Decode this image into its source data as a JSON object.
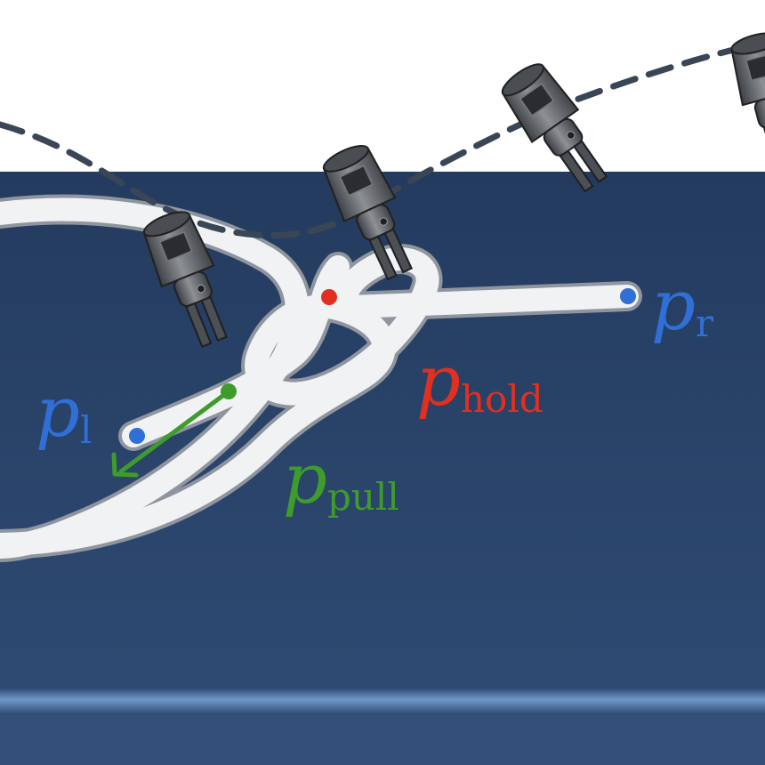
{
  "colors": {
    "table_top": "#2b4469",
    "table_edge": "#4f77a8",
    "rope_fill": "#f1f2f4",
    "rope_outline": "#8f959e",
    "trajectory": "#3a4656",
    "gripper_body": "#5e6166",
    "gripper_dark": "#2f3236",
    "gripper_light": "#9a9da2",
    "point_blue": "#2f6fd6",
    "point_red": "#e1301f",
    "point_green": "#3e9b2c"
  },
  "labels": {
    "p_l": {
      "base": "p",
      "sub": "l"
    },
    "p_r": {
      "base": "p",
      "sub": "r"
    },
    "p_hold": {
      "base": "p",
      "sub": "hold"
    },
    "p_pull": {
      "base": "p",
      "sub": "pull"
    }
  },
  "icons": {
    "gripper": "robot-gripper-icon",
    "pull_arrow": "arrow-down-left-icon"
  }
}
